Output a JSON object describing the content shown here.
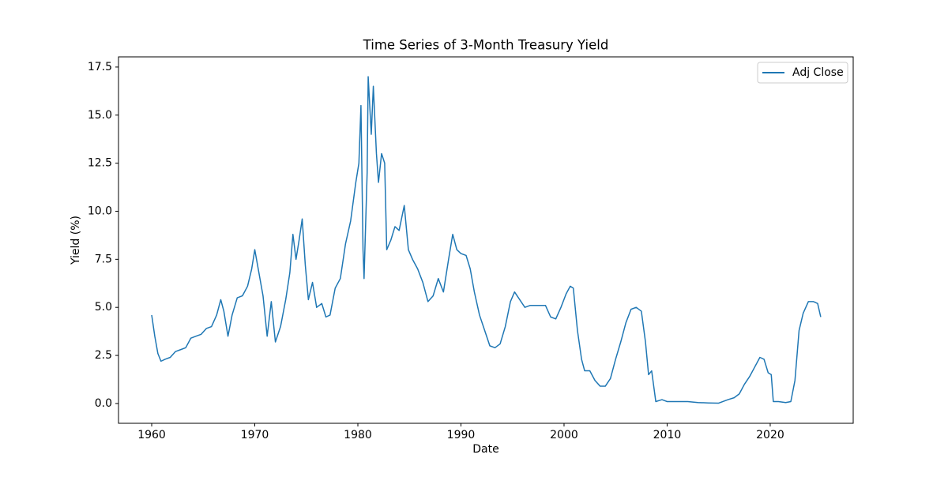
{
  "chart_data": {
    "type": "line",
    "title": "Time Series of 3-Month Treasury Yield",
    "x_label": "Date",
    "y_label": "Yield (%)",
    "x": [
      1960.0,
      1960.3,
      1960.6,
      1960.9,
      1961.3,
      1961.8,
      1962.3,
      1962.8,
      1963.3,
      1963.8,
      1964.3,
      1964.8,
      1965.3,
      1965.8,
      1966.3,
      1966.7,
      1967.0,
      1967.4,
      1967.8,
      1968.3,
      1968.8,
      1969.3,
      1969.7,
      1970.0,
      1970.4,
      1970.8,
      1971.2,
      1971.6,
      1972.0,
      1972.5,
      1973.0,
      1973.4,
      1973.7,
      1974.0,
      1974.3,
      1974.6,
      1974.9,
      1975.2,
      1975.6,
      1976.0,
      1976.5,
      1976.9,
      1977.3,
      1977.8,
      1978.3,
      1978.8,
      1979.3,
      1979.8,
      1980.1,
      1980.3,
      1980.5,
      1980.6,
      1980.9,
      1981.0,
      1981.3,
      1981.5,
      1981.8,
      1982.0,
      1982.3,
      1982.6,
      1982.8,
      1983.2,
      1983.6,
      1984.0,
      1984.5,
      1984.9,
      1985.3,
      1985.8,
      1986.3,
      1986.8,
      1987.3,
      1987.8,
      1988.3,
      1988.8,
      1989.2,
      1989.6,
      1990.0,
      1990.5,
      1990.9,
      1991.3,
      1991.8,
      1992.3,
      1992.8,
      1993.3,
      1993.8,
      1994.3,
      1994.8,
      1995.2,
      1995.7,
      1996.2,
      1996.7,
      1997.2,
      1997.7,
      1998.2,
      1998.7,
      1999.2,
      1999.7,
      2000.2,
      2000.6,
      2000.9,
      2001.3,
      2001.7,
      2002.0,
      2002.5,
      2003.0,
      2003.5,
      2004.0,
      2004.5,
      2005.0,
      2005.5,
      2006.0,
      2006.5,
      2007.0,
      2007.5,
      2007.9,
      2008.2,
      2008.5,
      2008.9,
      2009.5,
      2010.0,
      2011.0,
      2012.0,
      2013.0,
      2014.0,
      2015.0,
      2015.9,
      2016.5,
      2017.0,
      2017.5,
      2018.0,
      2018.5,
      2019.0,
      2019.4,
      2019.8,
      2020.1,
      2020.3,
      2020.8,
      2021.5,
      2022.0,
      2022.4,
      2022.8,
      2023.2,
      2023.7,
      2024.2,
      2024.6,
      2024.9
    ],
    "series": [
      {
        "name": "Adj Close",
        "color": "#1f77b4",
        "values": [
          4.6,
          3.5,
          2.6,
          2.2,
          2.3,
          2.4,
          2.7,
          2.8,
          2.9,
          3.4,
          3.5,
          3.6,
          3.9,
          4.0,
          4.6,
          5.4,
          4.8,
          3.5,
          4.6,
          5.5,
          5.6,
          6.1,
          7.0,
          8.0,
          6.8,
          5.6,
          3.5,
          5.3,
          3.2,
          4.0,
          5.4,
          6.8,
          8.8,
          7.5,
          8.5,
          9.6,
          7.2,
          5.4,
          6.3,
          5.0,
          5.2,
          4.5,
          4.6,
          6.0,
          6.5,
          8.3,
          9.5,
          11.5,
          12.5,
          15.5,
          8.0,
          6.5,
          12.0,
          17.0,
          14.0,
          16.5,
          13.0,
          11.5,
          13.0,
          12.5,
          8.0,
          8.5,
          9.2,
          9.0,
          10.3,
          8.0,
          7.5,
          7.0,
          6.3,
          5.3,
          5.6,
          6.5,
          5.8,
          7.5,
          8.8,
          8.0,
          7.8,
          7.7,
          7.0,
          5.8,
          4.6,
          3.8,
          3.0,
          2.9,
          3.1,
          4.0,
          5.3,
          5.8,
          5.4,
          5.0,
          5.1,
          5.1,
          5.1,
          5.1,
          4.5,
          4.4,
          5.0,
          5.7,
          6.1,
          6.0,
          3.8,
          2.3,
          1.7,
          1.7,
          1.2,
          0.9,
          0.9,
          1.3,
          2.3,
          3.2,
          4.2,
          4.9,
          5.0,
          4.8,
          3.2,
          1.5,
          1.7,
          0.1,
          0.2,
          0.1,
          0.1,
          0.1,
          0.05,
          0.03,
          0.02,
          0.2,
          0.3,
          0.5,
          1.0,
          1.4,
          1.9,
          2.4,
          2.3,
          1.6,
          1.5,
          0.1,
          0.1,
          0.05,
          0.1,
          1.2,
          3.8,
          4.7,
          5.3,
          5.3,
          5.2,
          4.5
        ]
      }
    ],
    "xlim": [
      1956.78,
      2028.05
    ],
    "xticks": [
      1960,
      1970,
      1980,
      1990,
      2000,
      2010,
      2020
    ],
    "ylim": [
      -1.03,
      18.03
    ],
    "yticks": [
      {
        "value": 0,
        "label": "0.0"
      },
      2.5,
      {
        "value": 5,
        "label": "5.0"
      },
      7.5,
      {
        "value": 10,
        "label": "10.0"
      },
      12.5,
      {
        "value": 15,
        "label": "15.0"
      },
      17.5
    ],
    "legend": "upper right"
  }
}
